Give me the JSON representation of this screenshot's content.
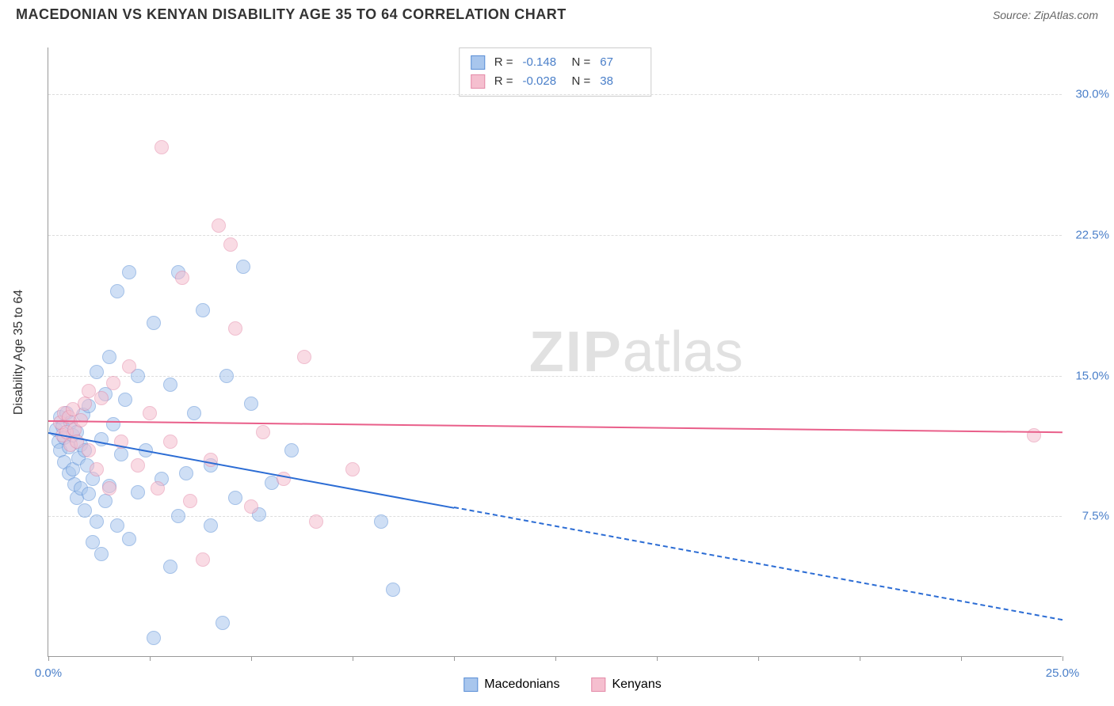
{
  "header": {
    "title": "MACEDONIAN VS KENYAN DISABILITY AGE 35 TO 64 CORRELATION CHART",
    "source": "Source: ZipAtlas.com"
  },
  "chart": {
    "type": "scatter",
    "y_axis_label": "Disability Age 35 to 64",
    "watermark_zip": "ZIP",
    "watermark_atlas": "atlas",
    "xlim": [
      0,
      25
    ],
    "ylim": [
      0,
      32.5
    ],
    "x_ticks": [
      0,
      2.5,
      5,
      7.5,
      10,
      12.5,
      15,
      17.5,
      20,
      22.5,
      25
    ],
    "x_tick_labels_shown": {
      "0": "0.0%",
      "25": "25.0%"
    },
    "y_ticks": [
      7.5,
      15.0,
      22.5,
      30.0
    ],
    "y_tick_labels": [
      "7.5%",
      "15.0%",
      "22.5%",
      "30.0%"
    ],
    "background_color": "#ffffff",
    "grid_color": "#dddddd",
    "axis_color": "#999999",
    "tick_label_color": "#4a7fc9",
    "point_radius": 9,
    "point_opacity": 0.55,
    "point_stroke_width": 1.5,
    "series": [
      {
        "name": "Macedonians",
        "fill": "#a8c6ed",
        "stroke": "#5b8fd6",
        "r_value": "-0.148",
        "n_value": "67",
        "trend": {
          "x1": 0,
          "y1": 12.0,
          "x2_solid": 10.0,
          "y2_solid": 8.0,
          "x2": 25.0,
          "y2": 2.0,
          "color": "#2b6cd4",
          "width": 2.5
        },
        "points": [
          [
            0.2,
            12.1
          ],
          [
            0.25,
            11.5
          ],
          [
            0.3,
            12.8
          ],
          [
            0.3,
            11.0
          ],
          [
            0.35,
            12.3
          ],
          [
            0.4,
            11.7
          ],
          [
            0.4,
            10.4
          ],
          [
            0.45,
            13.0
          ],
          [
            0.5,
            11.2
          ],
          [
            0.5,
            9.8
          ],
          [
            0.55,
            12.5
          ],
          [
            0.6,
            10.0
          ],
          [
            0.6,
            11.8
          ],
          [
            0.65,
            9.2
          ],
          [
            0.7,
            12.0
          ],
          [
            0.7,
            8.5
          ],
          [
            0.75,
            10.6
          ],
          [
            0.8,
            11.3
          ],
          [
            0.8,
            9.0
          ],
          [
            0.85,
            12.9
          ],
          [
            0.9,
            7.8
          ],
          [
            0.9,
            11.0
          ],
          [
            0.95,
            10.2
          ],
          [
            1.0,
            13.4
          ],
          [
            1.0,
            8.7
          ],
          [
            1.1,
            6.1
          ],
          [
            1.1,
            9.5
          ],
          [
            1.2,
            15.2
          ],
          [
            1.2,
            7.2
          ],
          [
            1.3,
            11.6
          ],
          [
            1.3,
            5.5
          ],
          [
            1.4,
            14.0
          ],
          [
            1.4,
            8.3
          ],
          [
            1.5,
            16.0
          ],
          [
            1.5,
            9.1
          ],
          [
            1.6,
            12.4
          ],
          [
            1.7,
            19.5
          ],
          [
            1.7,
            7.0
          ],
          [
            1.8,
            10.8
          ],
          [
            1.9,
            13.7
          ],
          [
            2.0,
            6.3
          ],
          [
            2.0,
            20.5
          ],
          [
            2.2,
            15.0
          ],
          [
            2.2,
            8.8
          ],
          [
            2.4,
            11.0
          ],
          [
            2.6,
            1.0
          ],
          [
            2.6,
            17.8
          ],
          [
            2.8,
            9.5
          ],
          [
            3.0,
            4.8
          ],
          [
            3.0,
            14.5
          ],
          [
            3.2,
            20.5
          ],
          [
            3.2,
            7.5
          ],
          [
            3.4,
            9.8
          ],
          [
            3.6,
            13.0
          ],
          [
            3.8,
            18.5
          ],
          [
            4.0,
            10.2
          ],
          [
            4.0,
            7.0
          ],
          [
            4.3,
            1.8
          ],
          [
            4.4,
            15.0
          ],
          [
            4.6,
            8.5
          ],
          [
            4.8,
            20.8
          ],
          [
            5.0,
            13.5
          ],
          [
            5.2,
            7.6
          ],
          [
            5.5,
            9.3
          ],
          [
            6.0,
            11.0
          ],
          [
            8.2,
            7.2
          ],
          [
            8.5,
            3.6
          ]
        ]
      },
      {
        "name": "Kenyans",
        "fill": "#f5bfcf",
        "stroke": "#e48aa8",
        "r_value": "-0.028",
        "n_value": "38",
        "trend": {
          "x1": 0,
          "y1": 12.6,
          "x2_solid": 25.0,
          "y2_solid": 12.0,
          "x2": 25.0,
          "y2": 12.0,
          "color": "#e95f8a",
          "width": 2.5
        },
        "points": [
          [
            0.3,
            12.5
          ],
          [
            0.35,
            11.8
          ],
          [
            0.4,
            13.0
          ],
          [
            0.45,
            12.0
          ],
          [
            0.5,
            12.8
          ],
          [
            0.55,
            11.3
          ],
          [
            0.6,
            13.2
          ],
          [
            0.65,
            12.1
          ],
          [
            0.7,
            11.5
          ],
          [
            0.8,
            12.6
          ],
          [
            0.9,
            13.5
          ],
          [
            1.0,
            14.2
          ],
          [
            1.0,
            11.0
          ],
          [
            1.2,
            10.0
          ],
          [
            1.3,
            13.8
          ],
          [
            1.5,
            9.0
          ],
          [
            1.6,
            14.6
          ],
          [
            1.8,
            11.5
          ],
          [
            2.0,
            15.5
          ],
          [
            2.2,
            10.2
          ],
          [
            2.5,
            13.0
          ],
          [
            2.7,
            9.0
          ],
          [
            2.8,
            27.2
          ],
          [
            3.0,
            11.5
          ],
          [
            3.3,
            20.2
          ],
          [
            3.5,
            8.3
          ],
          [
            3.8,
            5.2
          ],
          [
            4.0,
            10.5
          ],
          [
            4.2,
            23.0
          ],
          [
            4.5,
            22.0
          ],
          [
            4.6,
            17.5
          ],
          [
            5.0,
            8.0
          ],
          [
            5.3,
            12.0
          ],
          [
            5.8,
            9.5
          ],
          [
            6.3,
            16.0
          ],
          [
            6.6,
            7.2
          ],
          [
            7.5,
            10.0
          ],
          [
            24.3,
            11.8
          ]
        ]
      }
    ],
    "bottom_legend": [
      {
        "label": "Macedonians",
        "fill": "#a8c6ed",
        "stroke": "#5b8fd6"
      },
      {
        "label": "Kenyans",
        "fill": "#f5bfcf",
        "stroke": "#e48aa8"
      }
    ]
  }
}
